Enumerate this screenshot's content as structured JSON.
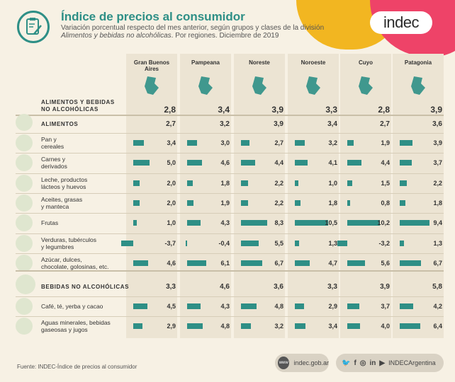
{
  "header": {
    "title": "Índice de precios al consumidor",
    "subtitle_line1": "Variación porcentual respecto del mes anterior, según grupos y clases de la división",
    "subtitle_italic": "Alimentos y bebidas no alcohólicas",
    "subtitle_rest": ". Por regiones. Diciembre de 2019",
    "logo": "indec"
  },
  "regions": [
    "Gran Buenos Aires",
    "Pampeana",
    "Noreste",
    "Noroeste",
    "Cuyo",
    "Patagonia"
  ],
  "summary_label_1": "ALIMENTOS Y BEBIDAS",
  "summary_label_2": "NO ALCOHÓLICAS",
  "summary_values": [
    "2,8",
    "3,4",
    "3,9",
    "3,3",
    "2,8",
    "3,9"
  ],
  "alimentos": {
    "label": "ALIMENTOS",
    "values": [
      "2,7",
      "3,2",
      "3,9",
      "3,4",
      "2,7",
      "3,6"
    ]
  },
  "alimentos_rows": [
    {
      "label1": "Pan y",
      "label2": "cereales",
      "values": [
        "3,4",
        "3,0",
        "2,7",
        "3,2",
        "1,9",
        "3,9"
      ],
      "nums": [
        3.4,
        3.0,
        2.7,
        3.2,
        1.9,
        3.9
      ]
    },
    {
      "label1": "Carnes y",
      "label2": "derivados",
      "values": [
        "5,0",
        "4,6",
        "4,4",
        "4,1",
        "4,4",
        "3,7"
      ],
      "nums": [
        5.0,
        4.6,
        4.4,
        4.1,
        4.4,
        3.7
      ]
    },
    {
      "label1": "Leche, productos",
      "label2": "lácteos y huevos",
      "values": [
        "2,0",
        "1,8",
        "2,2",
        "1,0",
        "1,5",
        "2,2"
      ],
      "nums": [
        2.0,
        1.8,
        2.2,
        1.0,
        1.5,
        2.2
      ]
    },
    {
      "label1": "Aceites, grasas",
      "label2": "y manteca",
      "values": [
        "2,0",
        "1,9",
        "2,2",
        "1,8",
        "0,8",
        "1,8"
      ],
      "nums": [
        2.0,
        1.9,
        2.2,
        1.8,
        0.8,
        1.8
      ]
    },
    {
      "label1": "Frutas",
      "label2": "",
      "values": [
        "1,0",
        "4,3",
        "8,3",
        "10,5",
        "10,2",
        "9,4"
      ],
      "nums": [
        1.0,
        4.3,
        8.3,
        10.5,
        10.2,
        9.4
      ]
    },
    {
      "label1": "Verduras, tubérculos",
      "label2": "y legumbres",
      "values": [
        "-3,7",
        "-0,4",
        "5,5",
        "1,3",
        "-3,2",
        "1,3"
      ],
      "nums": [
        -3.7,
        -0.4,
        5.5,
        1.3,
        -3.2,
        1.3
      ]
    },
    {
      "label1": "Azúcar, dulces,",
      "label2": "chocolate, golosinas, etc.",
      "values": [
        "4,6",
        "6,1",
        "6,7",
        "4,7",
        "5,6",
        "6,7"
      ],
      "nums": [
        4.6,
        6.1,
        6.7,
        4.7,
        5.6,
        6.7
      ]
    }
  ],
  "bebidas": {
    "label": "BEBIDAS NO ALCOHÓLICAS",
    "values": [
      "3,3",
      "4,6",
      "3,6",
      "3,3",
      "3,9",
      "5,8"
    ]
  },
  "bebidas_rows": [
    {
      "label1": "Café, té, yerba y cacao",
      "label2": "",
      "values": [
        "4,5",
        "4,3",
        "4,8",
        "2,9",
        "3,7",
        "4,2"
      ],
      "nums": [
        4.5,
        4.3,
        4.8,
        2.9,
        3.7,
        4.2
      ]
    },
    {
      "label1": "Aguas minerales, bebidas",
      "label2": "gaseosas y jugos",
      "values": [
        "2,9",
        "4,8",
        "3,2",
        "3,4",
        "4,0",
        "6,4"
      ],
      "nums": [
        2.9,
        4.8,
        3.2,
        3.4,
        4.0,
        6.4
      ]
    }
  ],
  "footer": {
    "source": "Fuente: INDEC-Índice de precios al consumidor",
    "web": "indec.gob.ar",
    "web_icon": "www",
    "social": "INDECArgentina"
  },
  "colors": {
    "accent": "#2e8f86",
    "yellow": "#f2b621",
    "pink": "#ee4368"
  }
}
